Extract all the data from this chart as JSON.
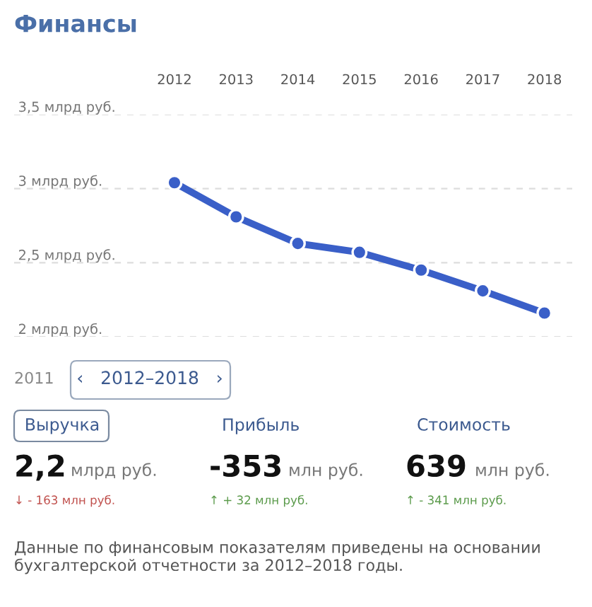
{
  "chart_data": {
    "type": "line",
    "title": "Финансы",
    "categories": [
      "2012",
      "2013",
      "2014",
      "2015",
      "2016",
      "2017",
      "2018"
    ],
    "series": [
      {
        "color": "#3a5fc8",
        "values": [
          3.04,
          2.81,
          2.63,
          2.57,
          2.45,
          2.31,
          2.16
        ]
      }
    ],
    "ylim": [
      2,
      3.5
    ],
    "yticks": [
      {
        "value": 2,
        "label": "2 млрд руб."
      },
      {
        "value": 2.5,
        "label": "2,5 млрд руб."
      },
      {
        "value": 3,
        "label": "3 млрд руб."
      },
      {
        "value": 3.5,
        "label": "3,5 млрд руб."
      }
    ],
    "grid": "y",
    "marker": "circle",
    "line_style": "solid",
    "annotations": [
      "2011",
      "‹   2012–2018   ›",
      "Выручка",
      "Прибыль",
      "Стоимость",
      "2,2",
      "млрд руб.",
      "-353",
      "млн руб.",
      "639",
      "млн руб.",
      "↓ - 163 млн руб.",
      "↑ + 32 млн руб.",
      "↑ - 341 млн руб.",
      "Данные по финансовым показателям приведены на основании бухгалтерской отчетности за 2012–2018 годы."
    ]
  }
}
